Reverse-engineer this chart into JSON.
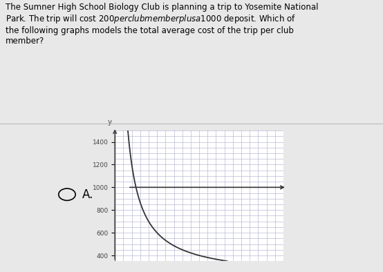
{
  "title_text": "The Sumner High School Biology Club is planning a trip to Yosemite National\nPark. The trip will cost $200 per club member plus a $1000 deposit. Which of\nthe following graphs models the total average cost of the trip per club\nmember?",
  "label": "A.",
  "y_ticks": [
    400,
    600,
    800,
    1000,
    1200,
    1400
  ],
  "x_min": 0,
  "x_max": 10,
  "y_min": 350,
  "y_max": 1500,
  "asymptote": 1000,
  "deposit": 1000,
  "cost_per_member": 200,
  "grid_color": "#aaaacc",
  "line_color": "#333333",
  "axis_color": "#444444",
  "bg_color": "#e8e8e8",
  "plot_bg": "#ffffff",
  "label_fontsize": 10,
  "tick_fontsize": 6.5,
  "title_fontsize": 8.5
}
